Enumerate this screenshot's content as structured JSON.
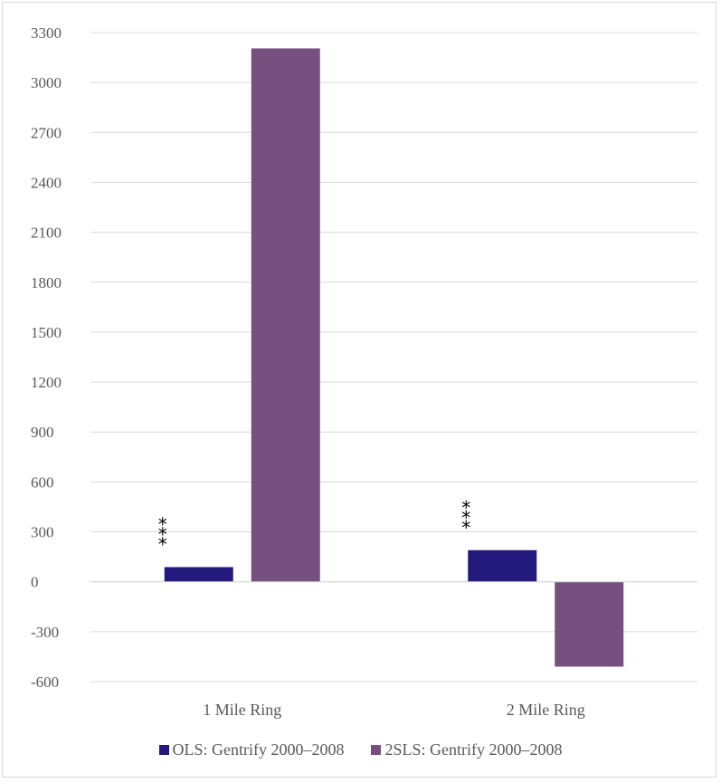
{
  "chart_data": {
    "type": "bar",
    "categories": [
      "1 Mile Ring",
      "2 Mile Ring"
    ],
    "series": [
      {
        "name": "OLS: Gentrify 2000–2008",
        "values": [
          88,
          190
        ],
        "color": "#241a7d"
      },
      {
        "name": "2SLS: Gentrify 2000–2008",
        "values": [
          3205,
          -510
        ],
        "color": "#76507f"
      }
    ],
    "annotations": [
      {
        "category": "1 Mile Ring",
        "series": "OLS: Gentrify 2000–2008",
        "text": "***"
      },
      {
        "category": "2 Mile Ring",
        "series": "OLS: Gentrify 2000–2008",
        "text": "***"
      }
    ],
    "ylim": [
      -600,
      3300
    ],
    "yticks": [
      -600,
      -300,
      0,
      300,
      600,
      900,
      1200,
      1500,
      1800,
      2100,
      2400,
      2700,
      3000,
      3300
    ],
    "title": "",
    "xlabel": "",
    "ylabel": "",
    "grid": true,
    "legend_position": "bottom"
  }
}
